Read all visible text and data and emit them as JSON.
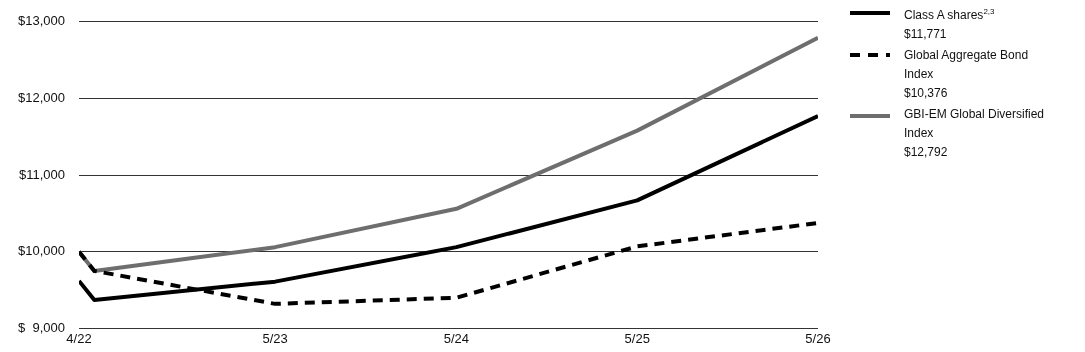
{
  "chart_data": {
    "type": "line",
    "x": [
      "2022-04-30",
      "2022-05-31",
      "2023-05-31",
      "2024-05-31",
      "2025-05-31",
      "2026-05-31"
    ],
    "series": [
      {
        "name": "Class A shares$^{2,3}$",
        "color": "#000000",
        "line_style": "solid",
        "values": [
          9620,
          9370,
          9610,
          10060,
          10670,
          11771
        ]
      },
      {
        "name": "Global Aggregate Bond Index",
        "color": "#000000",
        "line_style": "dashed",
        "values": [
          10000,
          9750,
          9320,
          9400,
          10070,
          10376
        ]
      },
      {
        "name": "GBI-EM Global Diversified Index",
        "color": "#6e6e6e",
        "line_style": "solid",
        "values": [
          10000,
          9750,
          10060,
          10560,
          11580,
          12792
        ]
      }
    ],
    "annotations": [
      "$11,771",
      "$10,376",
      "$12,792"
    ],
    "xlim": [
      "2022-04-30",
      "2026-05-31"
    ],
    "xticks": [
      {
        "value": "2022-04-30",
        "label": "4/22"
      },
      {
        "value": "2023-05-31",
        "label": "5/23"
      },
      {
        "value": "2024-05-31",
        "label": "5/24"
      },
      {
        "value": "2025-05-31",
        "label": "5/25"
      },
      {
        "value": "2026-05-31",
        "label": "5/26"
      }
    ],
    "ylim": [
      9000,
      13000
    ],
    "yticks": [
      {
        "value": 9000,
        "label": "$  9,000"
      },
      {
        "value": 10000,
        "label": "$10,000"
      },
      {
        "value": 11000,
        "label": "$11,000"
      },
      {
        "value": 12000,
        "label": "$12,000"
      },
      {
        "value": 13000,
        "label": "$13,000"
      }
    ],
    "grid": "y",
    "legend": "right",
    "marker": "none"
  }
}
